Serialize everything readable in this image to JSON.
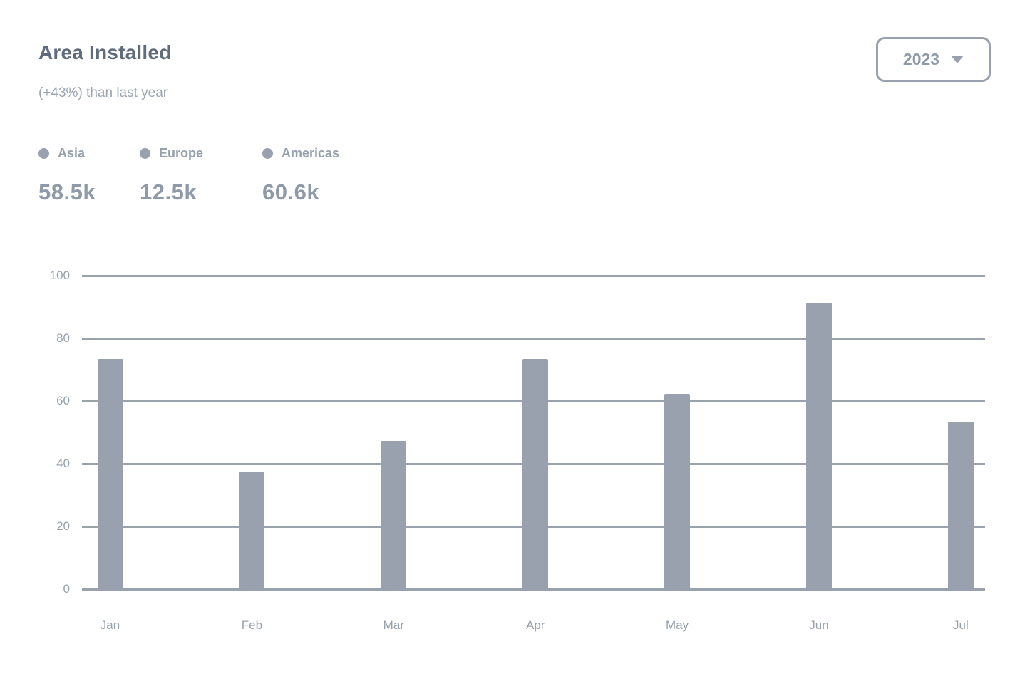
{
  "header": {
    "title": "Area Installed",
    "subtitle": "(+43%) than last year",
    "year_select": {
      "value": "2023",
      "icon": "chevron-down-icon"
    }
  },
  "legend": {
    "items": [
      {
        "label": "Asia",
        "value": "58.5k",
        "dot_color": "#98a1ad"
      },
      {
        "label": "Europe",
        "value": "12.5k",
        "dot_color": "#98a1ad"
      },
      {
        "label": "Americas",
        "value": "60.6k",
        "dot_color": "#98a1ad"
      }
    ]
  },
  "chart_data": {
    "type": "bar",
    "title": "Area Installed",
    "categories": [
      "Jan",
      "Feb",
      "Mar",
      "Apr",
      "May",
      "Jun",
      "Jul"
    ],
    "values": [
      74,
      38,
      48,
      74,
      63,
      92,
      54
    ],
    "xlabel": "",
    "ylabel": "",
    "ylim": [
      0,
      100
    ],
    "yticks": [
      0,
      20,
      40,
      60,
      80,
      100
    ],
    "grid": "horizontal-solid",
    "legend_position": "top-left",
    "bar_color": "#98a1ad"
  },
  "colors": {
    "background": "#ffffff",
    "title_text": "#5f6c7b",
    "subtitle_text": "#9aa5b1",
    "muted_text": "#97a1ac",
    "value_text": "#8e9aa7",
    "bar_fill": "#98a1ad",
    "gridline": "#99a2ad",
    "button_border": "#98a1ad"
  }
}
